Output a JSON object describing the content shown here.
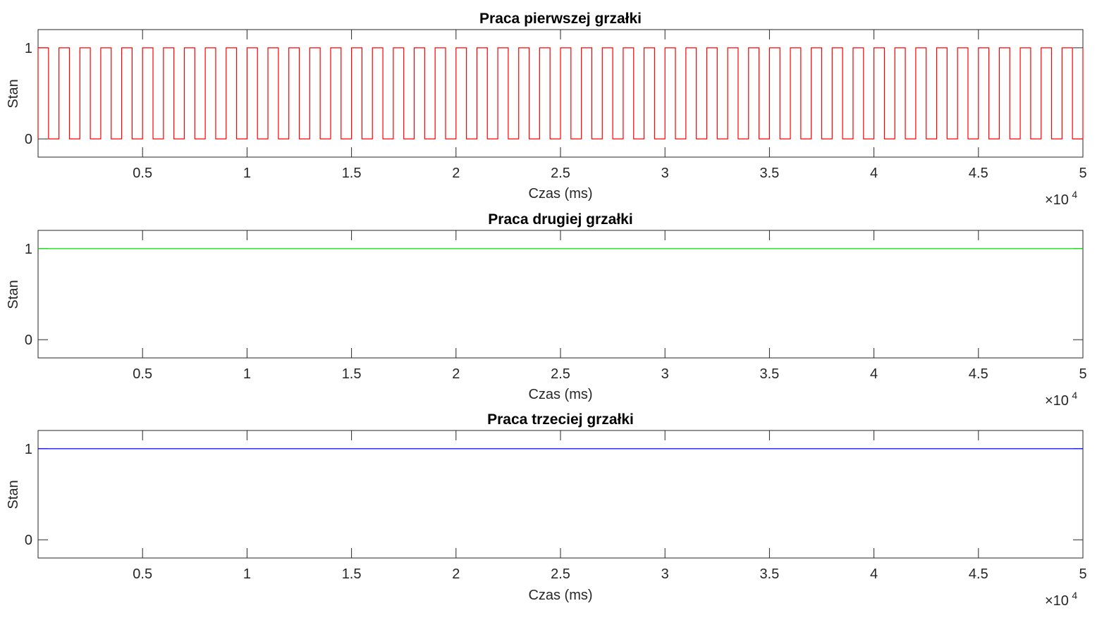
{
  "figure": {
    "charts": [
      {
        "title": "Praca pierwszej grzałki",
        "xlabel": "Czas (ms)",
        "ylabel": "Stan",
        "exponent": {
          "base": "×10",
          "power": "4"
        }
      },
      {
        "title": "Praca drugiej grzałki",
        "xlabel": "Czas (ms)",
        "ylabel": "Stan",
        "exponent": {
          "base": "×10",
          "power": "4"
        }
      },
      {
        "title": "Praca trzeciej grzałki",
        "xlabel": "Czas (ms)",
        "ylabel": "Stan",
        "exponent": {
          "base": "×10",
          "power": "4"
        }
      }
    ]
  },
  "chart_data": [
    {
      "type": "line",
      "title": "Praca pierwszej grzałki",
      "xlabel": "Czas (ms)",
      "ylabel": "Stan",
      "xlim": [
        0,
        50000
      ],
      "ylim": [
        -0.2,
        1.2
      ],
      "x_ticks": [
        0.5,
        1,
        1.5,
        2,
        2.5,
        3,
        3.5,
        4,
        4.5,
        5
      ],
      "x_tick_labels": [
        "0.5",
        "1",
        "1.5",
        "2",
        "2.5",
        "3",
        "3.5",
        "4",
        "4.5",
        "5"
      ],
      "x_multiplier": "×10^4",
      "y_ticks": [
        0,
        1
      ],
      "y_tick_labels": [
        "0",
        "1"
      ],
      "grid": false,
      "color": "#ff0000",
      "series": [
        {
          "values_description": "square wave alternating between 1 and 0",
          "pulses": [
            {
              "on": 0,
              "off": 500
            },
            {
              "on": 1000,
              "off": 1500
            },
            {
              "on": 2000,
              "off": 2500
            },
            {
              "on": 3000,
              "off": 3500
            },
            {
              "on": 4000,
              "off": 4500
            },
            {
              "on": 5000,
              "off": 5500
            },
            {
              "on": 6000,
              "off": 6500
            },
            {
              "on": 7000,
              "off": 7500
            },
            {
              "on": 8000,
              "off": 8500
            },
            {
              "on": 9000,
              "off": 9500
            },
            {
              "on": 10000,
              "off": 10500
            },
            {
              "on": 11000,
              "off": 11500
            },
            {
              "on": 12000,
              "off": 12500
            },
            {
              "on": 13000,
              "off": 13500
            },
            {
              "on": 14000,
              "off": 14500
            },
            {
              "on": 15000,
              "off": 15500
            },
            {
              "on": 16000,
              "off": 16500
            },
            {
              "on": 17000,
              "off": 17500
            },
            {
              "on": 18000,
              "off": 18500
            },
            {
              "on": 19000,
              "off": 19500
            },
            {
              "on": 20000,
              "off": 20500
            },
            {
              "on": 21000,
              "off": 21500
            },
            {
              "on": 22000,
              "off": 22500
            },
            {
              "on": 23000,
              "off": 23500
            },
            {
              "on": 24000,
              "off": 24500
            },
            {
              "on": 25000,
              "off": 25500
            },
            {
              "on": 26000,
              "off": 26500
            },
            {
              "on": 27000,
              "off": 27500
            },
            {
              "on": 28000,
              "off": 28500
            },
            {
              "on": 29000,
              "off": 29500
            },
            {
              "on": 30000,
              "off": 30500
            },
            {
              "on": 31000,
              "off": 31500
            },
            {
              "on": 32000,
              "off": 32500
            },
            {
              "on": 33000,
              "off": 33500
            },
            {
              "on": 34000,
              "off": 34500
            },
            {
              "on": 35000,
              "off": 35500
            },
            {
              "on": 36000,
              "off": 36500
            },
            {
              "on": 37000,
              "off": 37500
            },
            {
              "on": 38000,
              "off": 38500
            },
            {
              "on": 39000,
              "off": 39500
            },
            {
              "on": 40000,
              "off": 40500
            },
            {
              "on": 41000,
              "off": 41500
            },
            {
              "on": 42000,
              "off": 42500
            },
            {
              "on": 43000,
              "off": 43500
            },
            {
              "on": 44000,
              "off": 44500
            },
            {
              "on": 45000,
              "off": 45500
            },
            {
              "on": 46000,
              "off": 46500
            },
            {
              "on": 47000,
              "off": 47500
            },
            {
              "on": 48000,
              "off": 48500
            },
            {
              "on": 49000,
              "off": 49500
            }
          ],
          "x_end": 50000
        }
      ]
    },
    {
      "type": "line",
      "title": "Praca drugiej grzałki",
      "xlabel": "Czas (ms)",
      "ylabel": "Stan",
      "xlim": [
        0,
        50000
      ],
      "ylim": [
        -0.2,
        1.2
      ],
      "x_ticks": [
        0.5,
        1,
        1.5,
        2,
        2.5,
        3,
        3.5,
        4,
        4.5,
        5
      ],
      "x_tick_labels": [
        "0.5",
        "1",
        "1.5",
        "2",
        "2.5",
        "3",
        "3.5",
        "4",
        "4.5",
        "5"
      ],
      "x_multiplier": "×10^4",
      "y_ticks": [
        0,
        1
      ],
      "y_tick_labels": [
        "0",
        "1"
      ],
      "grid": false,
      "color": "#00dd00",
      "series": [
        {
          "x": [
            0,
            50000
          ],
          "y": [
            1,
            1
          ]
        }
      ]
    },
    {
      "type": "line",
      "title": "Praca trzeciej grzałki",
      "xlabel": "Czas (ms)",
      "ylabel": "Stan",
      "xlim": [
        0,
        50000
      ],
      "ylim": [
        -0.2,
        1.2
      ],
      "x_ticks": [
        0.5,
        1,
        1.5,
        2,
        2.5,
        3,
        3.5,
        4,
        4.5,
        5
      ],
      "x_tick_labels": [
        "0.5",
        "1",
        "1.5",
        "2",
        "2.5",
        "3",
        "3.5",
        "4",
        "4.5",
        "5"
      ],
      "x_multiplier": "×10^4",
      "y_ticks": [
        0,
        1
      ],
      "y_tick_labels": [
        "0",
        "1"
      ],
      "grid": false,
      "color": "#0000ff",
      "series": [
        {
          "x": [
            0,
            50000
          ],
          "y": [
            1,
            1
          ]
        }
      ]
    }
  ]
}
